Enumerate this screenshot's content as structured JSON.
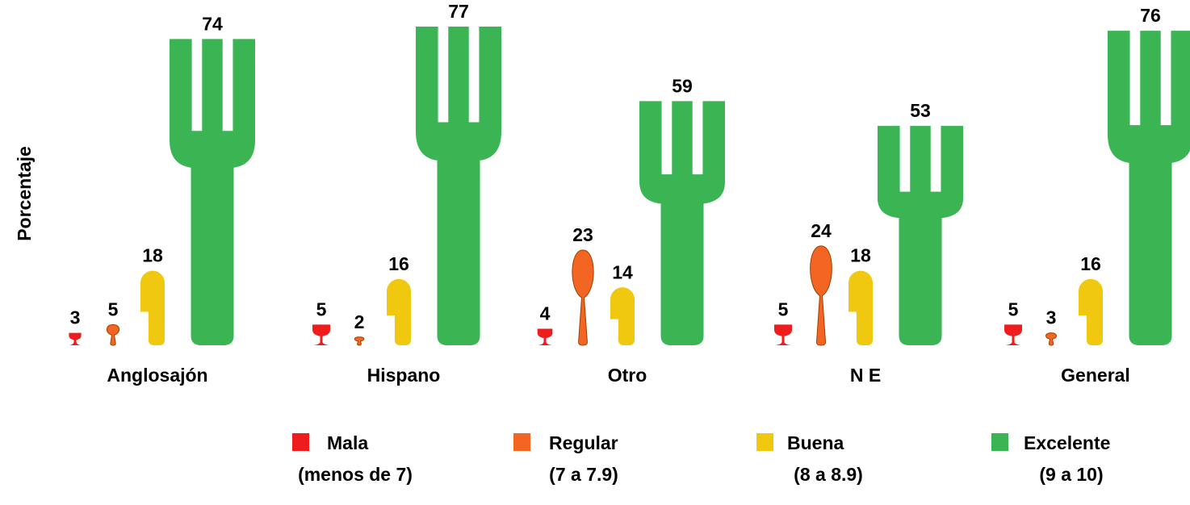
{
  "chart_data": {
    "type": "pictograph",
    "y_label": "Porcentaje",
    "categories": [
      "Anglosajón",
      "Hispano",
      "Otro",
      "N E",
      "General"
    ],
    "series": [
      {
        "name": "Mala",
        "range": "(menos de 7)",
        "icon": "glass",
        "color": "#ee1c1c",
        "values": [
          3,
          5,
          4,
          5,
          5
        ]
      },
      {
        "name": "Regular",
        "range": "(7 a 7.9)",
        "icon": "spoon",
        "color": "#f26522",
        "values": [
          5,
          2,
          23,
          24,
          3
        ]
      },
      {
        "name": "Buena",
        "range": "(8 a 8.9)",
        "icon": "knife",
        "color": "#f0c80f",
        "values": [
          18,
          16,
          14,
          18,
          16
        ]
      },
      {
        "name": "Excelente",
        "range": "(9 a 10)",
        "icon": "fork",
        "color": "#3bb554",
        "values": [
          74,
          77,
          59,
          53,
          76
        ]
      }
    ]
  }
}
